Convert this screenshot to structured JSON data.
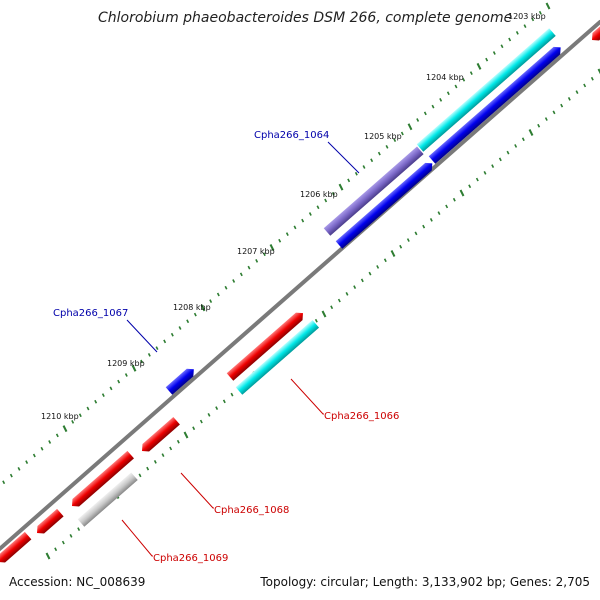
{
  "title": "Chlorobium phaeobacteroides DSM 266, complete genome",
  "accession": "Accession: NC_008639",
  "topology_info": "Topology: circular; Length: 3,133,902 bp; Genes: 2,705",
  "ticks": [
    {
      "label": "1203 kbp"
    },
    {
      "label": "1204 kbp"
    },
    {
      "label": "1205 kbp"
    },
    {
      "label": "1206 kbp"
    },
    {
      "label": "1207 kbp"
    },
    {
      "label": "1208 kbp"
    },
    {
      "label": "1209 kbp"
    },
    {
      "label": "1210 kbp"
    }
  ],
  "gene_labels": [
    {
      "name": "Cpha266_1064",
      "color": "#0000aa"
    },
    {
      "name": "Cpha266_1067",
      "color": "#0000aa"
    },
    {
      "name": "Cpha266_1066",
      "color": "#cc0000"
    },
    {
      "name": "Cpha266_1068",
      "color": "#cc0000"
    },
    {
      "name": "Cpha266_1069",
      "color": "#cc0000"
    }
  ],
  "colors": {
    "backbone": "#808080",
    "forward_cds": "#0000ee",
    "reverse_cds": "#ee0000",
    "cyan_feature": "#00eeee",
    "purple_feature": "#7b68c8",
    "grey_feature": "#c0c0c0",
    "tick_mark": "#2e7d32"
  }
}
